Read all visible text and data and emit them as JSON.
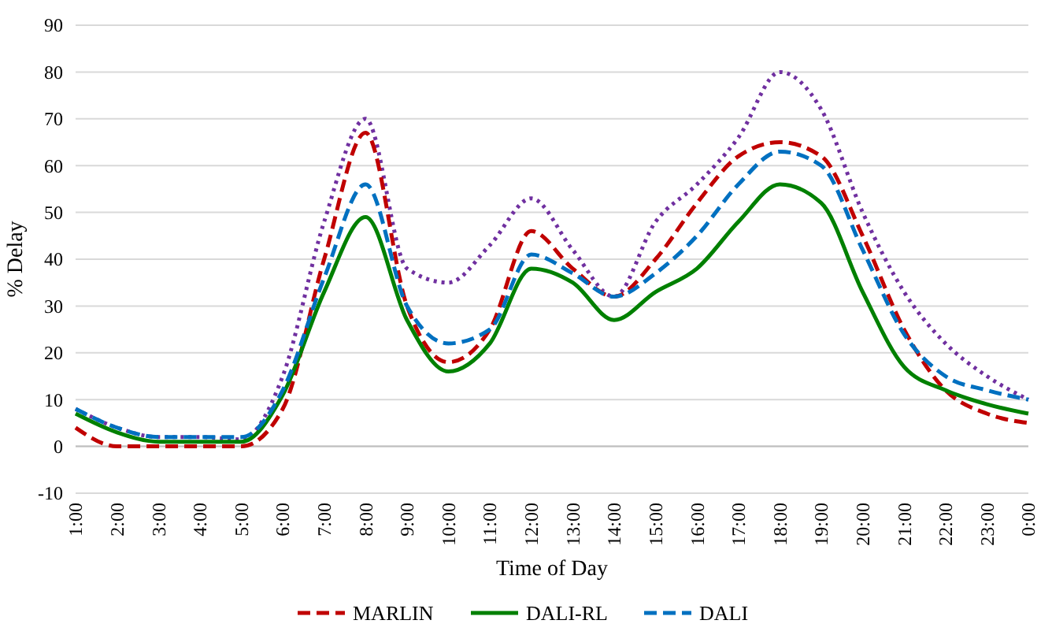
{
  "chart_data": {
    "type": "line",
    "xlabel": "Time of Day",
    "ylabel": "% Delay",
    "categories": [
      "1:00",
      "2:00",
      "3:00",
      "4:00",
      "5:00",
      "6:00",
      "7:00",
      "8:00",
      "9:00",
      "10:00",
      "11:00",
      "12:00",
      "13:00",
      "14:00",
      "15:00",
      "16:00",
      "17:00",
      "18:00",
      "19:00",
      "20:00",
      "21:00",
      "22:00",
      "23:00",
      "0:00"
    ],
    "ylim": [
      -10,
      90
    ],
    "yticks": [
      -10,
      0,
      10,
      20,
      30,
      40,
      50,
      60,
      70,
      80,
      90
    ],
    "grid": "y",
    "legend": "bottom",
    "series": [
      {
        "color": "#7030a0",
        "line_style": "dotted",
        "values": [
          8,
          4,
          2,
          2,
          1.5,
          15,
          48,
          70,
          38,
          35,
          43,
          53,
          42,
          32,
          48,
          56,
          66,
          80,
          72,
          50,
          33,
          22,
          15,
          10
        ]
      },
      {
        "name": "MARLIN",
        "color": "#c00000",
        "line_style": "dashed",
        "values": [
          4,
          0,
          0,
          0,
          0,
          8,
          40,
          67,
          30,
          18,
          25,
          46,
          38,
          32,
          40,
          52,
          62,
          65,
          62,
          45,
          25,
          12,
          7,
          5
        ]
      },
      {
        "name": "DALI-RL",
        "color": "#008000",
        "line_style": "solid",
        "values": [
          7,
          3,
          1,
          1,
          1,
          11,
          33,
          49,
          27,
          16,
          22,
          38,
          35,
          27,
          33,
          38,
          48,
          56,
          52,
          33,
          17,
          12,
          9,
          7
        ]
      },
      {
        "name": "DALI",
        "color": "#0070c0",
        "line_style": "dashed",
        "values": [
          8,
          4,
          2,
          2,
          2,
          12,
          36,
          56,
          30,
          22,
          25,
          41,
          37,
          32,
          37,
          45,
          56,
          63,
          60,
          42,
          24,
          15,
          12,
          10
        ]
      }
    ]
  }
}
